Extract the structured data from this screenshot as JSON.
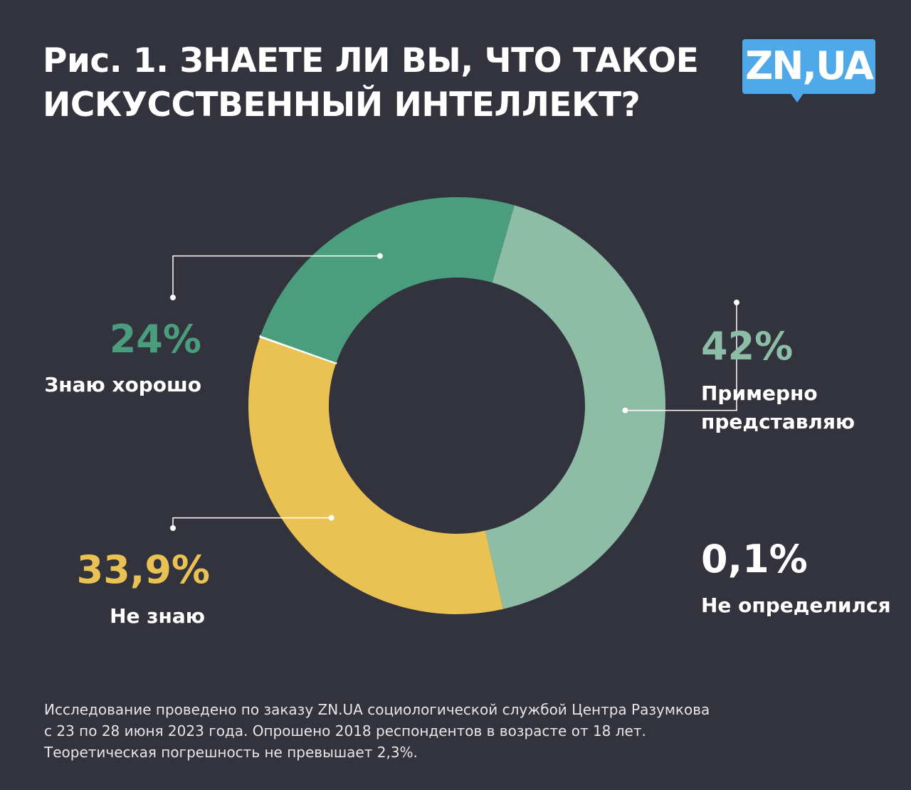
{
  "chart_data": {
    "type": "donut",
    "title": [
      "Рис. 1. ЗНАЕТЕ ЛИ ВЫ, ЧТО ТАКОЕ",
      "ИСКУССТВЕННЫЙ ИНТЕЛЛЕКТ?"
    ],
    "logo": "ZN,UA",
    "categories": [
      "Знаю хорошо",
      "Примерно представляю",
      "Не знаю",
      "Не определился"
    ],
    "values": [
      24,
      42,
      33.9,
      0.1
    ],
    "value_labels": [
      "24%",
      "42%",
      "33,9%",
      "0,1%"
    ],
    "colors": [
      "#4a9e7e",
      "#8dbda6",
      "#e9c253",
      "#ffffff"
    ],
    "note": [
      "Исследование проведено по заказу ZN.UA социологической службой Центра Разумкова",
      "с 23 по 28 июня 2023 года. Опрошено 2018 респондентов в возрасте от 18 лет.",
      "Теоретическая погрешность не превышает 2,3%."
    ]
  }
}
